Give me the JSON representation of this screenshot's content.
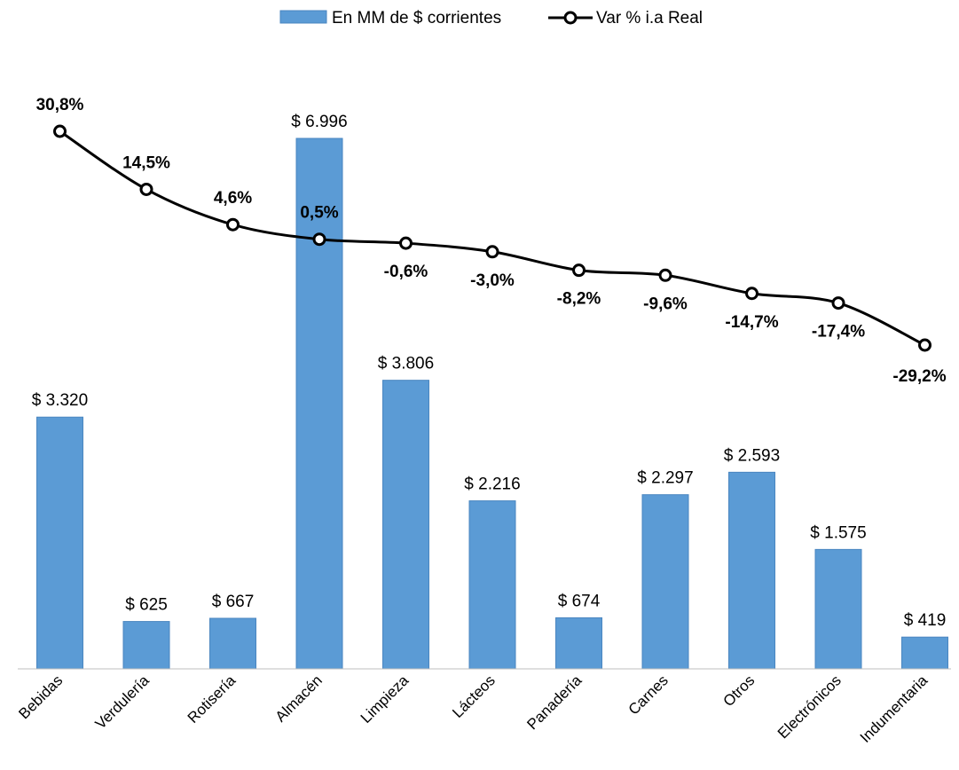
{
  "chart_data": {
    "type": "bar",
    "categories": [
      "Bebidas",
      "Verdulería",
      "Rotisería",
      "Almacén",
      "Limpieza",
      "Lácteos",
      "Panadería",
      "Carnes",
      "Otros",
      "Electrónicos",
      "Indumentaria"
    ],
    "series": [
      {
        "name": "En MM de $ corrientes",
        "type": "bar",
        "values": [
          3320,
          625,
          667,
          6996,
          3806,
          2216,
          674,
          2297,
          2593,
          1575,
          419
        ],
        "labels": [
          "$ 3.320",
          "$ 625",
          "$ 667",
          "$ 6.996",
          "$ 3.806",
          "$ 2.216",
          "$ 674",
          "$ 2.297",
          "$ 2.593",
          "$ 1.575",
          "$ 419"
        ],
        "color": "#5B9BD5"
      },
      {
        "name": "Var % i.a Real",
        "type": "line",
        "values": [
          30.8,
          14.5,
          4.6,
          0.5,
          -0.6,
          -3.0,
          -8.2,
          -9.6,
          -14.7,
          -17.4,
          -29.2
        ],
        "labels": [
          "30,8%",
          "14,5%",
          "4,6%",
          "0,5%",
          "-0,6%",
          "-3,0%",
          "-8,2%",
          "-9,6%",
          "-14,7%",
          "-17,4%",
          "-29,2%"
        ],
        "color": "#000000"
      }
    ],
    "legend_position": "top-center",
    "grid": false
  }
}
